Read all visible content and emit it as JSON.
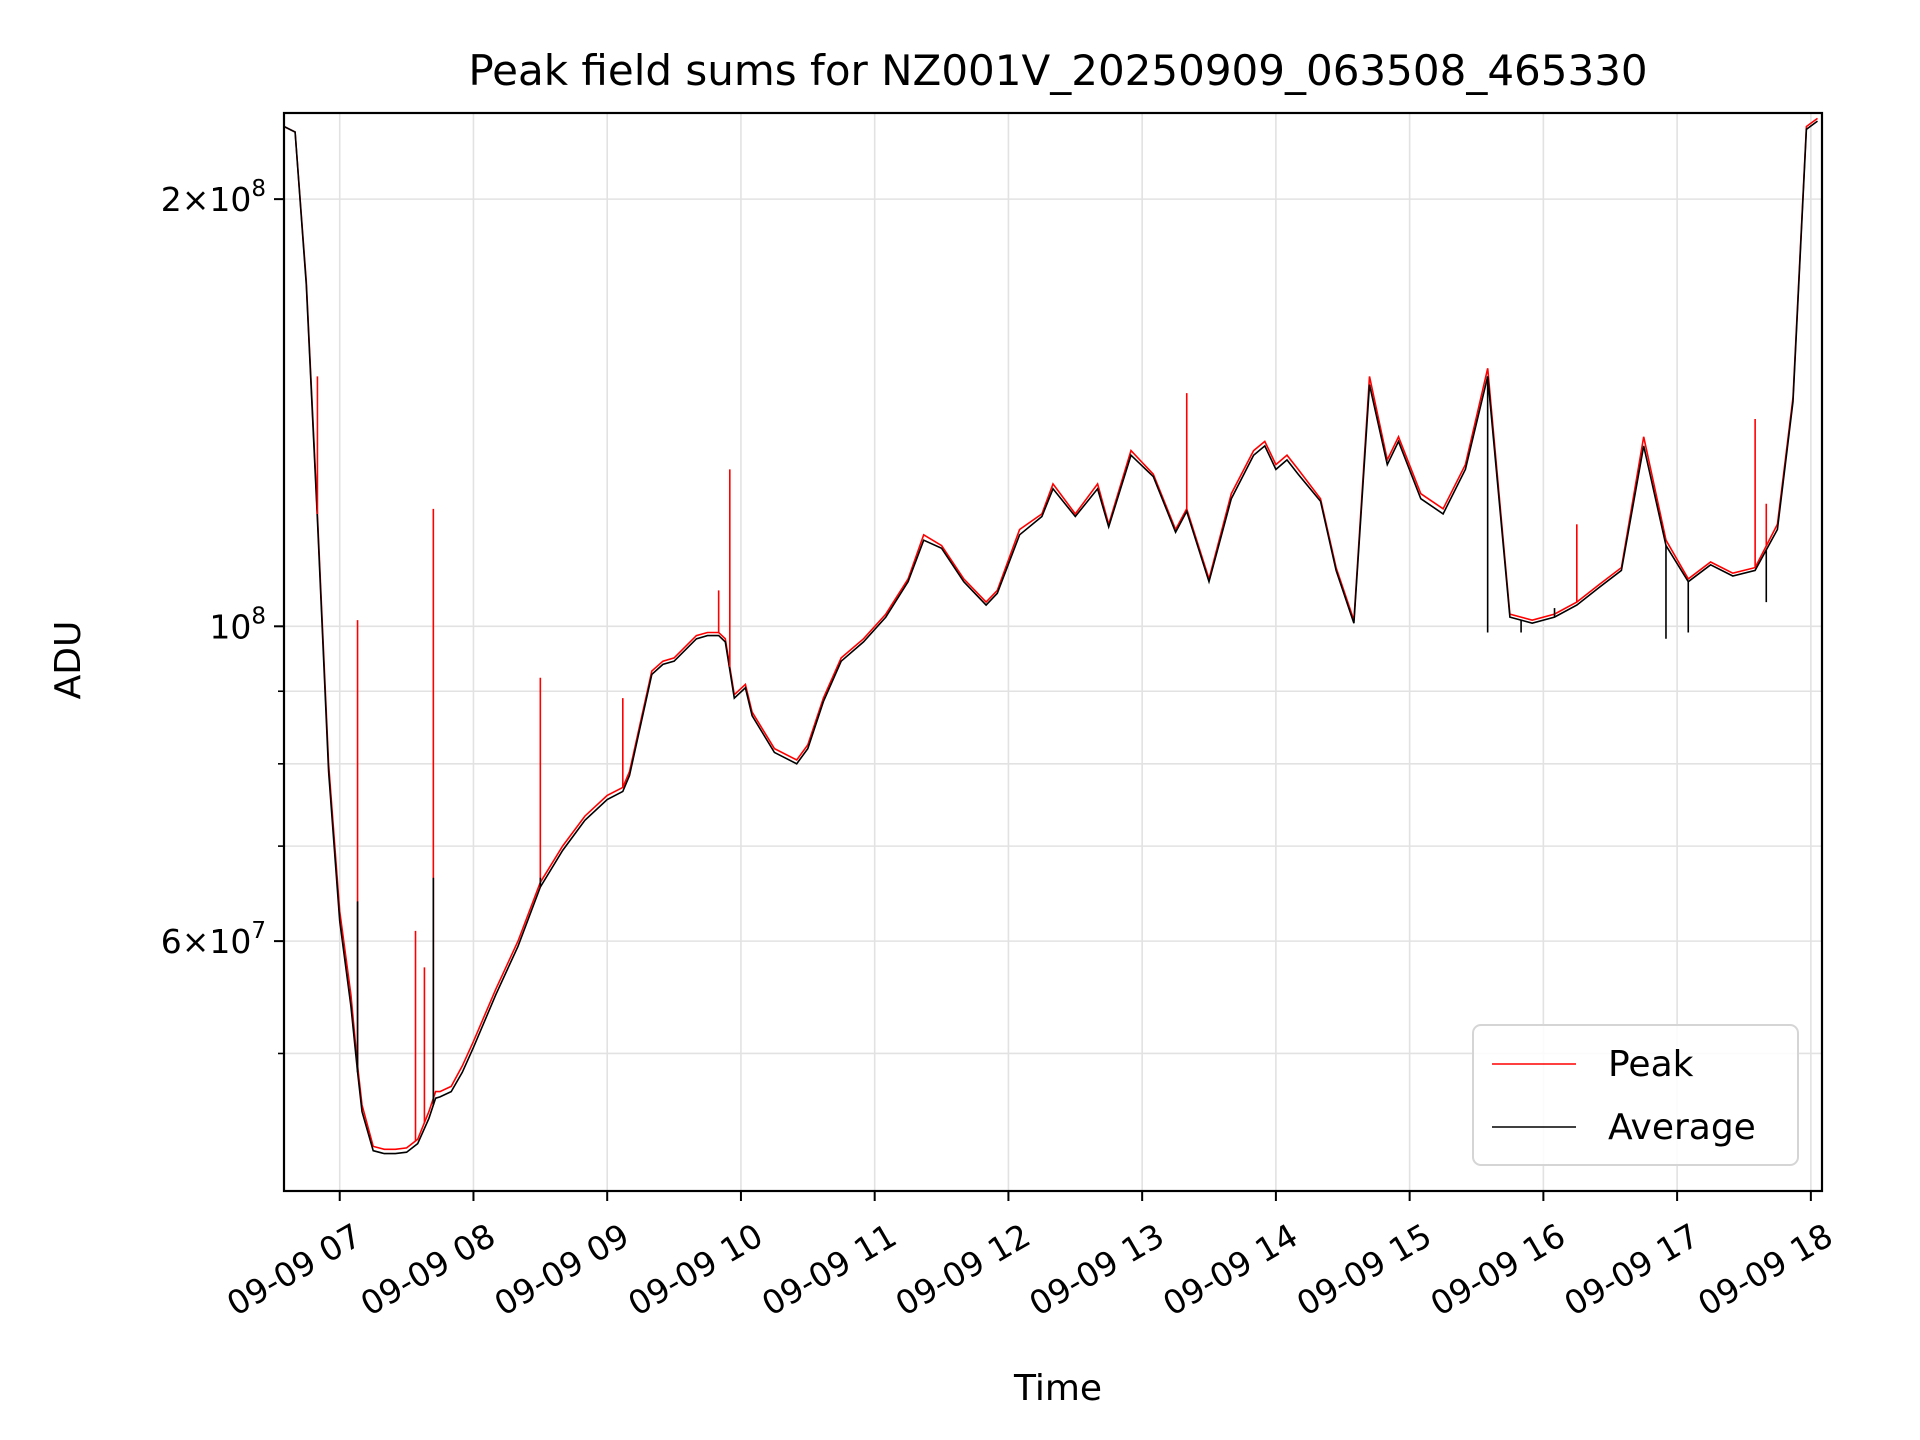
{
  "chart_data": {
    "type": "line",
    "title": "Peak field sums for NZ001V_20250909_063508_465330",
    "xlabel": "Time",
    "ylabel": "ADU",
    "yscale": "log",
    "ylim": [
      40000000,
      230000000
    ],
    "xlim": [
      "2025-09-09 06:35",
      "2025-09-09 18:05"
    ],
    "x_ticks": [
      "09-09 07",
      "09-09 08",
      "09-09 09",
      "09-09 10",
      "09-09 11",
      "09-09 12",
      "09-09 13",
      "09-09 14",
      "09-09 15",
      "09-09 16",
      "09-09 17",
      "09-09 18"
    ],
    "y_tick_labels": [
      {
        "value": 200000000,
        "mantissa": "2",
        "exp": "8"
      },
      {
        "value": 100000000,
        "mantissa": "",
        "exp": "8"
      },
      {
        "value": 60000000,
        "mantissa": "6",
        "exp": "7"
      }
    ],
    "y_minor_ticks": [
      50000000,
      70000000,
      80000000,
      90000000
    ],
    "grid": true,
    "legend_position": "bottom-right",
    "series": [
      {
        "name": "Peak",
        "color": "#ff0000",
        "x": [
          "2025-09-09 06:35",
          "2025-09-09 06:40",
          "2025-09-09 06:45",
          "2025-09-09 06:50",
          "2025-09-09 06:55",
          "2025-09-09 07:00",
          "2025-09-09 07:05",
          "2025-09-09 07:08",
          "2025-09-09 07:10",
          "2025-09-09 07:15",
          "2025-09-09 07:20",
          "2025-09-09 07:25",
          "2025-09-09 07:30",
          "2025-09-09 07:35",
          "2025-09-09 07:40",
          "2025-09-09 07:43",
          "2025-09-09 07:45",
          "2025-09-09 07:50",
          "2025-09-09 07:55",
          "2025-09-09 08:00",
          "2025-09-09 08:10",
          "2025-09-09 08:20",
          "2025-09-09 08:30",
          "2025-09-09 08:40",
          "2025-09-09 08:50",
          "2025-09-09 09:00",
          "2025-09-09 09:07",
          "2025-09-09 09:10",
          "2025-09-09 09:20",
          "2025-09-09 09:25",
          "2025-09-09 09:30",
          "2025-09-09 09:40",
          "2025-09-09 09:45",
          "2025-09-09 09:50",
          "2025-09-09 09:53",
          "2025-09-09 09:57",
          "2025-09-09 10:02",
          "2025-09-09 10:05",
          "2025-09-09 10:15",
          "2025-09-09 10:25",
          "2025-09-09 10:30",
          "2025-09-09 10:37",
          "2025-09-09 10:45",
          "2025-09-09 10:55",
          "2025-09-09 11:05",
          "2025-09-09 11:15",
          "2025-09-09 11:22",
          "2025-09-09 11:30",
          "2025-09-09 11:40",
          "2025-09-09 11:50",
          "2025-09-09 11:55",
          "2025-09-09 12:05",
          "2025-09-09 12:15",
          "2025-09-09 12:20",
          "2025-09-09 12:30",
          "2025-09-09 12:40",
          "2025-09-09 12:45",
          "2025-09-09 12:55",
          "2025-09-09 13:05",
          "2025-09-09 13:15",
          "2025-09-09 13:20",
          "2025-09-09 13:30",
          "2025-09-09 13:40",
          "2025-09-09 13:50",
          "2025-09-09 13:55",
          "2025-09-09 14:00",
          "2025-09-09 14:05",
          "2025-09-09 14:10",
          "2025-09-09 14:20",
          "2025-09-09 14:27",
          "2025-09-09 14:35",
          "2025-09-09 14:42",
          "2025-09-09 14:50",
          "2025-09-09 14:55",
          "2025-09-09 15:05",
          "2025-09-09 15:15",
          "2025-09-09 15:25",
          "2025-09-09 15:35",
          "2025-09-09 15:45",
          "2025-09-09 15:55",
          "2025-09-09 16:05",
          "2025-09-09 16:15",
          "2025-09-09 16:25",
          "2025-09-09 16:35",
          "2025-09-09 16:45",
          "2025-09-09 16:55",
          "2025-09-09 17:05",
          "2025-09-09 17:15",
          "2025-09-09 17:25",
          "2025-09-09 17:35",
          "2025-09-09 17:45",
          "2025-09-09 17:52",
          "2025-09-09 17:58",
          "2025-09-09 18:03"
        ],
        "y": [
          225000000,
          223000000,
          175000000,
          120000000,
          80000000,
          63000000,
          55000000,
          49000000,
          46000000,
          43000000,
          42800000,
          42800000,
          42900000,
          43500000,
          45500000,
          47000000,
          47000000,
          47400000,
          49000000,
          51000000,
          55500000,
          60000000,
          66000000,
          70000000,
          73500000,
          76000000,
          77000000,
          79000000,
          93000000,
          94500000,
          95000000,
          98500000,
          99000000,
          99000000,
          98000000,
          89500000,
          91000000,
          87000000,
          82000000,
          80500000,
          82500000,
          89000000,
          95000000,
          98000000,
          102000000,
          108000000,
          116000000,
          114000000,
          108000000,
          104000000,
          106000000,
          117000000,
          120000000,
          126000000,
          120000000,
          126000000,
          118000000,
          133000000,
          128000000,
          117000000,
          121000000,
          108000000,
          124000000,
          133000000,
          135000000,
          130000000,
          132000000,
          129000000,
          123000000,
          110000000,
          101000000,
          150000000,
          131000000,
          136000000,
          124000000,
          121000000,
          130000000,
          152000000,
          102000000,
          101000000,
          102000000,
          104000000,
          107000000,
          110000000,
          136000000,
          115000000,
          108000000,
          111000000,
          109000000,
          110000000,
          118000000,
          145000000,
          225000000,
          228000000
        ]
      },
      {
        "name": "Average",
        "color": "#000000",
        "x": [
          "2025-09-09 06:35",
          "2025-09-09 06:40",
          "2025-09-09 06:45",
          "2025-09-09 06:50",
          "2025-09-09 06:55",
          "2025-09-09 07:00",
          "2025-09-09 07:05",
          "2025-09-09 07:08",
          "2025-09-09 07:10",
          "2025-09-09 07:15",
          "2025-09-09 07:20",
          "2025-09-09 07:25",
          "2025-09-09 07:30",
          "2025-09-09 07:35",
          "2025-09-09 07:40",
          "2025-09-09 07:43",
          "2025-09-09 07:45",
          "2025-09-09 07:50",
          "2025-09-09 07:55",
          "2025-09-09 08:00",
          "2025-09-09 08:10",
          "2025-09-09 08:20",
          "2025-09-09 08:30",
          "2025-09-09 08:40",
          "2025-09-09 08:50",
          "2025-09-09 09:00",
          "2025-09-09 09:07",
          "2025-09-09 09:10",
          "2025-09-09 09:20",
          "2025-09-09 09:25",
          "2025-09-09 09:30",
          "2025-09-09 09:40",
          "2025-09-09 09:45",
          "2025-09-09 09:50",
          "2025-09-09 09:53",
          "2025-09-09 09:57",
          "2025-09-09 10:02",
          "2025-09-09 10:05",
          "2025-09-09 10:15",
          "2025-09-09 10:25",
          "2025-09-09 10:30",
          "2025-09-09 10:37",
          "2025-09-09 10:45",
          "2025-09-09 10:55",
          "2025-09-09 11:05",
          "2025-09-09 11:15",
          "2025-09-09 11:22",
          "2025-09-09 11:30",
          "2025-09-09 11:40",
          "2025-09-09 11:50",
          "2025-09-09 11:55",
          "2025-09-09 12:05",
          "2025-09-09 12:15",
          "2025-09-09 12:20",
          "2025-09-09 12:30",
          "2025-09-09 12:40",
          "2025-09-09 12:45",
          "2025-09-09 12:55",
          "2025-09-09 13:05",
          "2025-09-09 13:15",
          "2025-09-09 13:20",
          "2025-09-09 13:30",
          "2025-09-09 13:40",
          "2025-09-09 13:50",
          "2025-09-09 13:55",
          "2025-09-09 14:00",
          "2025-09-09 14:05",
          "2025-09-09 14:10",
          "2025-09-09 14:20",
          "2025-09-09 14:27",
          "2025-09-09 14:35",
          "2025-09-09 14:42",
          "2025-09-09 14:50",
          "2025-09-09 14:55",
          "2025-09-09 15:05",
          "2025-09-09 15:15",
          "2025-09-09 15:25",
          "2025-09-09 15:35",
          "2025-09-09 15:45",
          "2025-09-09 15:55",
          "2025-09-09 16:05",
          "2025-09-09 16:15",
          "2025-09-09 16:25",
          "2025-09-09 16:35",
          "2025-09-09 16:45",
          "2025-09-09 16:55",
          "2025-09-09 17:05",
          "2025-09-09 17:15",
          "2025-09-09 17:25",
          "2025-09-09 17:35",
          "2025-09-09 17:45",
          "2025-09-09 17:52",
          "2025-09-09 17:58",
          "2025-09-09 18:03"
        ],
        "y": [
          225000000,
          223000000,
          174000000,
          119000000,
          79000000,
          62000000,
          54000000,
          48500000,
          45500000,
          42700000,
          42500000,
          42500000,
          42600000,
          43200000,
          45000000,
          46500000,
          46600000,
          47000000,
          48500000,
          50500000,
          55000000,
          59500000,
          65500000,
          69500000,
          73000000,
          75500000,
          76500000,
          78500000,
          92500000,
          94000000,
          94500000,
          98000000,
          98500000,
          98500000,
          97500000,
          89000000,
          90500000,
          86500000,
          81500000,
          80000000,
          82000000,
          88500000,
          94500000,
          97500000,
          101500000,
          107500000,
          115000000,
          113500000,
          107500000,
          103500000,
          105500000,
          116000000,
          119500000,
          125000000,
          119500000,
          125000000,
          117500000,
          132000000,
          127500000,
          116500000,
          120500000,
          107500000,
          123000000,
          132000000,
          134000000,
          129000000,
          131000000,
          128000000,
          122500000,
          109500000,
          100500000,
          148000000,
          130000000,
          135000000,
          123000000,
          120000000,
          129000000,
          150000000,
          101500000,
          100500000,
          101500000,
          103500000,
          106500000,
          109500000,
          134000000,
          114000000,
          107500000,
          110500000,
          108500000,
          109500000,
          117000000,
          144000000,
          224000000,
          227000000
        ]
      }
    ],
    "spikes": {
      "peak": [
        {
          "x": "2025-09-09 06:50",
          "y": 150000000
        },
        {
          "x": "2025-09-09 07:08",
          "y": 101000000
        },
        {
          "x": "2025-09-09 07:34",
          "y": 61000000
        },
        {
          "x": "2025-09-09 07:38",
          "y": 57500000
        },
        {
          "x": "2025-09-09 07:42",
          "y": 121000000
        },
        {
          "x": "2025-09-09 08:30",
          "y": 92000000
        },
        {
          "x": "2025-09-09 09:07",
          "y": 89000000
        },
        {
          "x": "2025-09-09 09:55",
          "y": 129000000
        },
        {
          "x": "2025-09-09 09:50",
          "y": 106000000
        },
        {
          "x": "2025-09-09 13:20",
          "y": 146000000
        },
        {
          "x": "2025-09-09 16:15",
          "y": 118000000
        },
        {
          "x": "2025-09-09 17:35",
          "y": 140000000
        },
        {
          "x": "2025-09-09 17:40",
          "y": 122000000
        }
      ],
      "average": [
        {
          "x": "2025-09-09 07:08",
          "y": 64000000
        },
        {
          "x": "2025-09-09 07:42",
          "y": 66500000
        },
        {
          "x": "2025-09-09 08:30",
          "y": 66500000
        },
        {
          "x": "2025-09-09 15:35",
          "y": 99000000
        },
        {
          "x": "2025-09-09 15:50",
          "y": 99000000
        },
        {
          "x": "2025-09-09 16:05",
          "y": 103000000
        },
        {
          "x": "2025-09-09 16:55",
          "y": 98000000
        },
        {
          "x": "2025-09-09 17:05",
          "y": 99000000
        },
        {
          "x": "2025-09-09 17:40",
          "y": 104000000
        }
      ]
    }
  }
}
